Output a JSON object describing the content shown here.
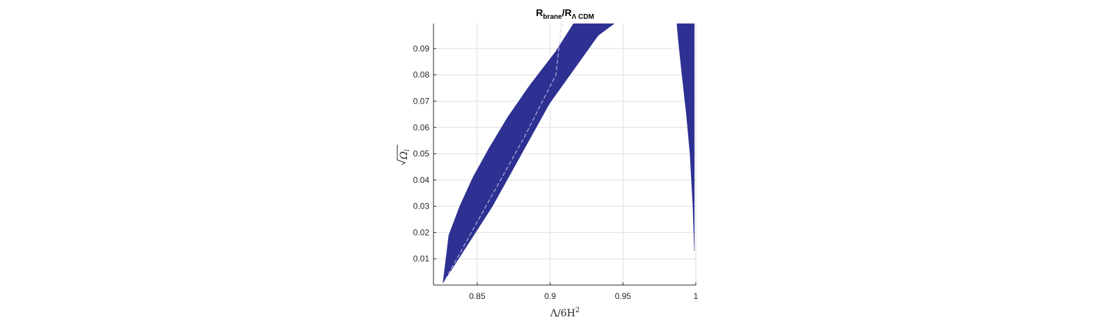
{
  "chart_data": {
    "type": "area",
    "title": {
      "main1": "R",
      "sub1": "brane",
      "main2": "/R",
      "sub2": "Λ CDM"
    },
    "xlabel": {
      "text": "Λ/6H",
      "sup": "2"
    },
    "ylabel": {
      "text": "Ω",
      "sub": "l"
    },
    "xlim": [
      0.82,
      1.0
    ],
    "ylim": [
      0.0,
      0.0995
    ],
    "x_ticks": [
      0.85,
      0.9,
      0.95,
      1
    ],
    "x_tick_labels": [
      "0.85",
      "0.9",
      "0.95",
      "1"
    ],
    "y_ticks": [
      0.01,
      0.02,
      0.03,
      0.04,
      0.05,
      0.06,
      0.07,
      0.08,
      0.09
    ],
    "y_tick_labels": [
      "0.01",
      "0.02",
      "0.03",
      "0.04",
      "0.05",
      "0.06",
      "0.07",
      "0.08",
      "0.09"
    ],
    "grid": true,
    "fill_color": "#2e3192",
    "fill_color_light": "#3a3aa0",
    "regions": [
      {
        "boundary_x": [
          0.8265,
          0.8605,
          0.8885,
          0.8995,
          0.933,
          0.944,
          0.916,
          0.904,
          0.886,
          0.871,
          0.858,
          0.847,
          0.838,
          0.8305,
          0.8265
        ],
        "boundary_y": [
          0.0008,
          0.03,
          0.058,
          0.069,
          0.095,
          0.0995,
          0.0995,
          0.089,
          0.076,
          0.064,
          0.052,
          0.041,
          0.03,
          0.019,
          0.0008
        ]
      },
      {
        "boundary_x": [
          0.987,
          0.999,
          0.999,
          0.998,
          0.996,
          0.9935,
          0.9905,
          0.988,
          0.987
        ],
        "boundary_y": [
          0.0995,
          0.0995,
          0.013,
          0.03,
          0.05,
          0.065,
          0.08,
          0.093,
          0.0995
        ]
      }
    ],
    "gap_line": {
      "x": [
        0.828,
        0.856,
        0.882,
        0.904,
        0.908
      ],
      "y": [
        0.002,
        0.03,
        0.056,
        0.08,
        0.0995
      ]
    }
  }
}
